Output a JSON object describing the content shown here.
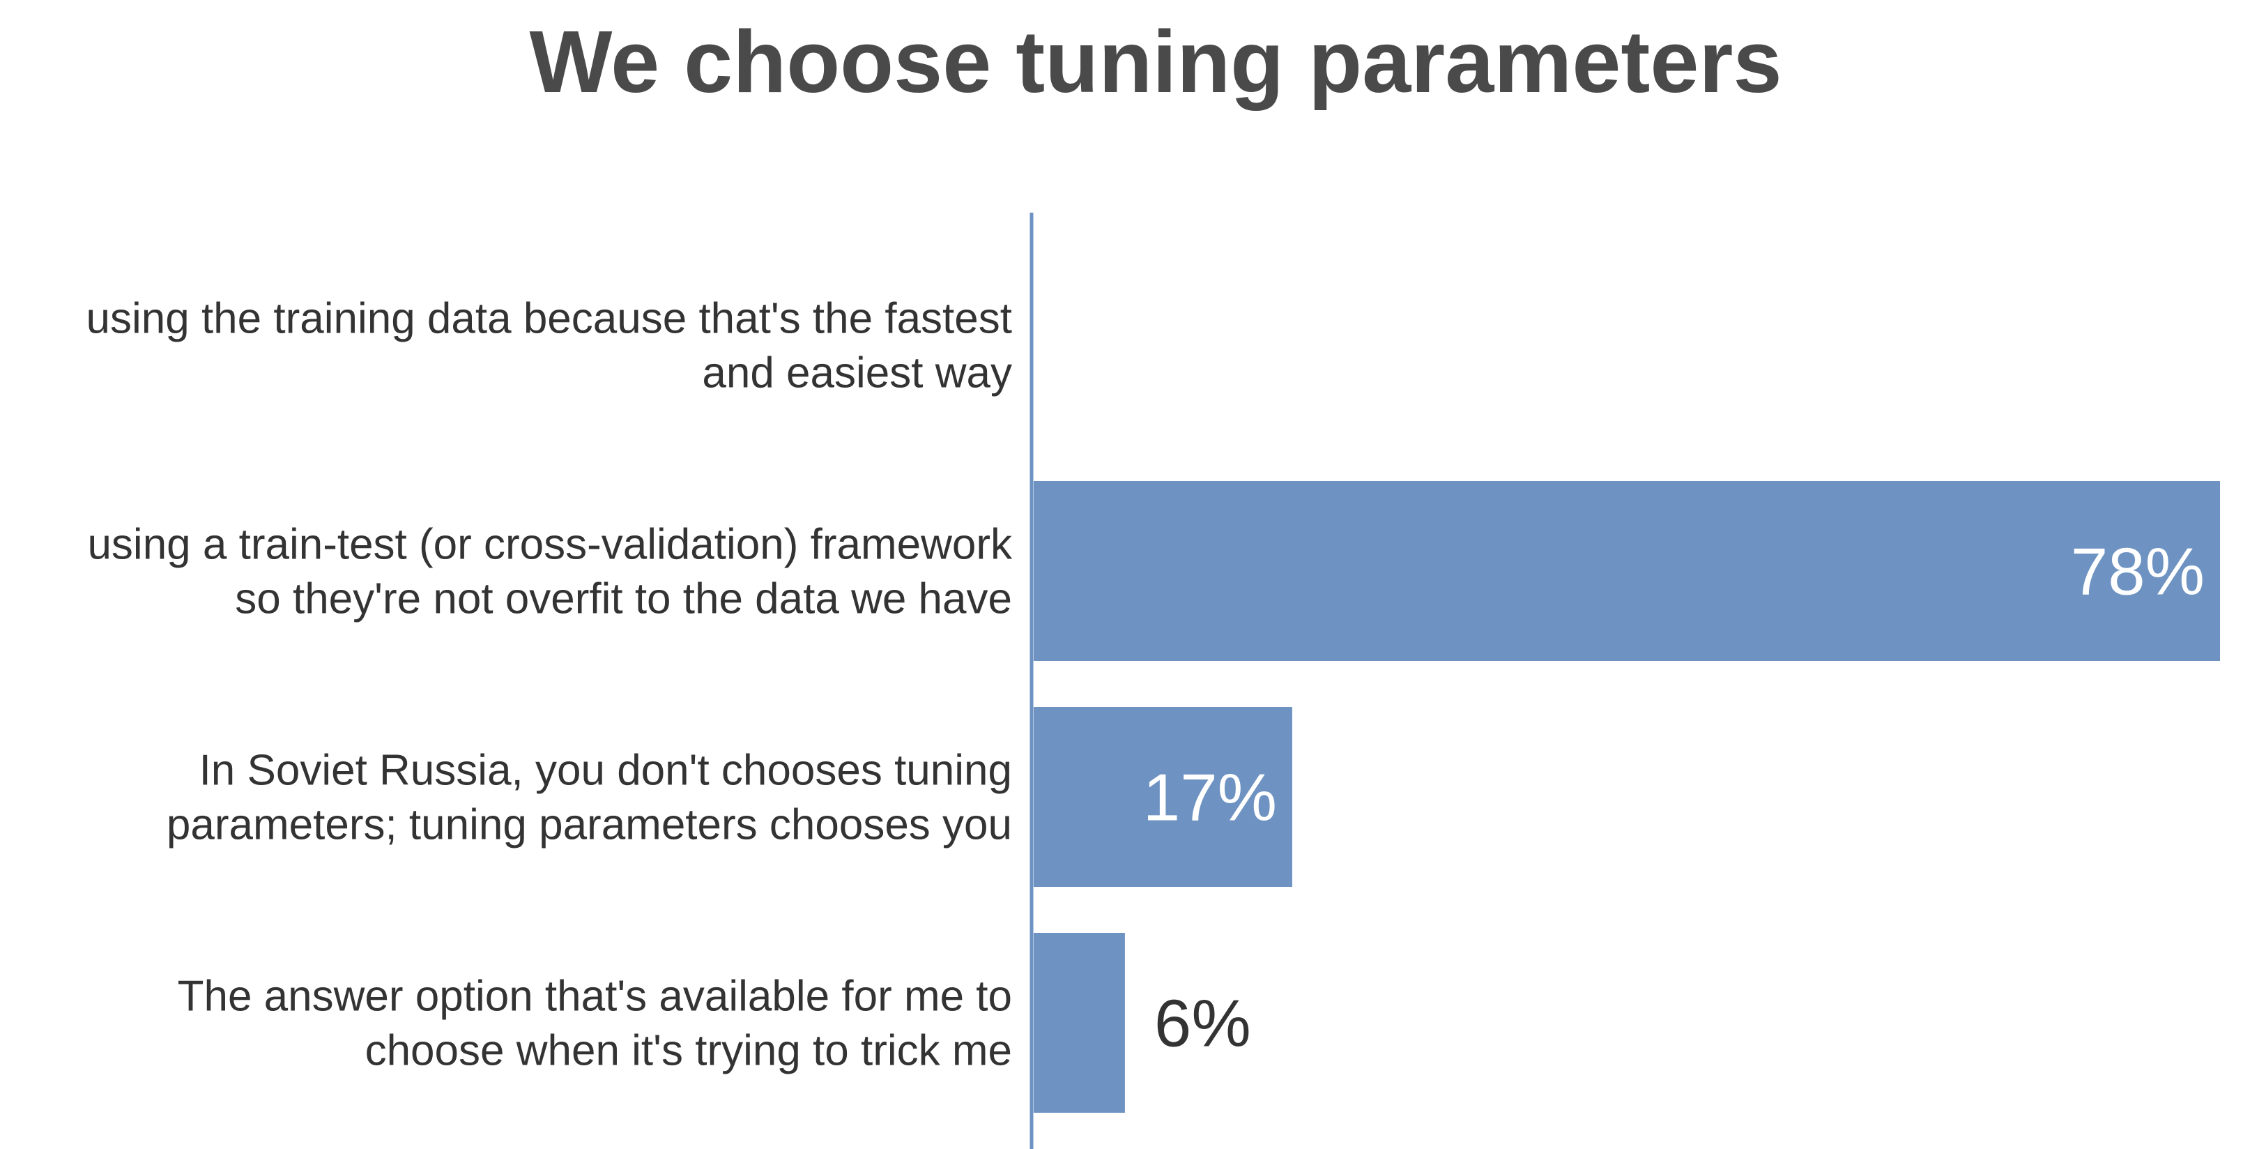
{
  "chart_data": {
    "type": "bar",
    "orientation": "horizontal",
    "title": "We choose tuning parameters",
    "categories": [
      [
        "using the training data because that's the fastest",
        "and easiest way"
      ],
      [
        "using a train-test (or cross-validation) framework",
        "so they're not overfit to the data we have"
      ],
      [
        "In Soviet Russia, you don't chooses tuning",
        "parameters; tuning parameters chooses you"
      ],
      [
        "The answer option that's available for me to",
        "choose when it's trying to trick me"
      ]
    ],
    "values": [
      0,
      78,
      17,
      6
    ],
    "value_labels": [
      "",
      "78%",
      "17%",
      "6%"
    ],
    "xlim": [
      0,
      78
    ],
    "grid": false,
    "legend": "none",
    "colors": {
      "bar": "#6e93c2",
      "title": "#4a4a4a",
      "label": "#333333",
      "value_inside": "#ffffff",
      "value_outside": "#333333"
    }
  }
}
